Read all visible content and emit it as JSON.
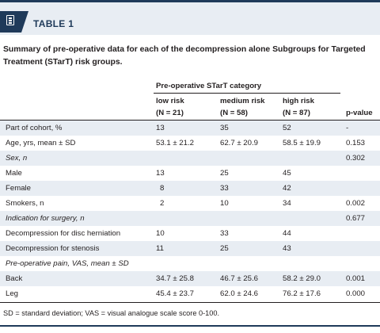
{
  "header": {
    "table_label": "TABLE 1",
    "icon": "document-list-icon"
  },
  "caption": "Summary of pre-operative data for each of the decompression alone Subgroups for Targeted Treatment (STarT) risk groups.",
  "table": {
    "group_header": "Pre-operative STarT category",
    "columns": [
      {
        "label": "low risk",
        "sub": "(N = 21)"
      },
      {
        "label": "medium risk",
        "sub": "(N = 58)"
      },
      {
        "label": "high risk",
        "sub": "(N = 87)"
      }
    ],
    "pvalue_header": "p-value",
    "rows": [
      {
        "label": "Part of cohort, %",
        "italic": false,
        "values": [
          "13",
          "35",
          "52"
        ],
        "p": "-"
      },
      {
        "label": "Age, yrs, mean ± SD",
        "italic": false,
        "values": [
          "53.1 ± 21.2",
          "62.7 ± 20.9",
          "58.5 ± 19.9"
        ],
        "p": "0.153"
      },
      {
        "label": "Sex, n",
        "italic": true,
        "values": [
          "",
          "",
          ""
        ],
        "p": "0.302"
      },
      {
        "label": "Male",
        "italic": false,
        "values": [
          "13",
          "25",
          "45"
        ],
        "p": ""
      },
      {
        "label": "Female",
        "italic": false,
        "values": [
          "8",
          "33",
          "42"
        ],
        "p": ""
      },
      {
        "label": "Smokers, n",
        "italic": false,
        "values": [
          "2",
          "10",
          "34"
        ],
        "p": "0.002"
      },
      {
        "label": "Indication for surgery, n",
        "italic": true,
        "values": [
          "",
          "",
          ""
        ],
        "p": "0.677"
      },
      {
        "label": "Decompression for disc herniation",
        "italic": false,
        "values": [
          "10",
          "33",
          "44"
        ],
        "p": ""
      },
      {
        "label": "Decompression for stenosis",
        "italic": false,
        "values": [
          "11",
          "25",
          "43"
        ],
        "p": ""
      },
      {
        "label": "Pre-operative pain, VAS, mean ± SD",
        "italic": true,
        "values": [
          "",
          "",
          ""
        ],
        "p": ""
      },
      {
        "label": "Back",
        "italic": false,
        "values": [
          "34.7 ± 25.8",
          "46.7 ± 25.6",
          "58.2 ± 29.0"
        ],
        "p": "0.001"
      },
      {
        "label": "Leg",
        "italic": false,
        "values": [
          "45.4 ± 23.7",
          "62.0 ± 24.6",
          "76.2 ± 17.6"
        ],
        "p": "0.000"
      }
    ]
  },
  "footnote": "SD = standard deviation; VAS = visual analogue scale score 0-100.",
  "colors": {
    "accent": "#1f3a5a",
    "band": "#e8edf3"
  }
}
